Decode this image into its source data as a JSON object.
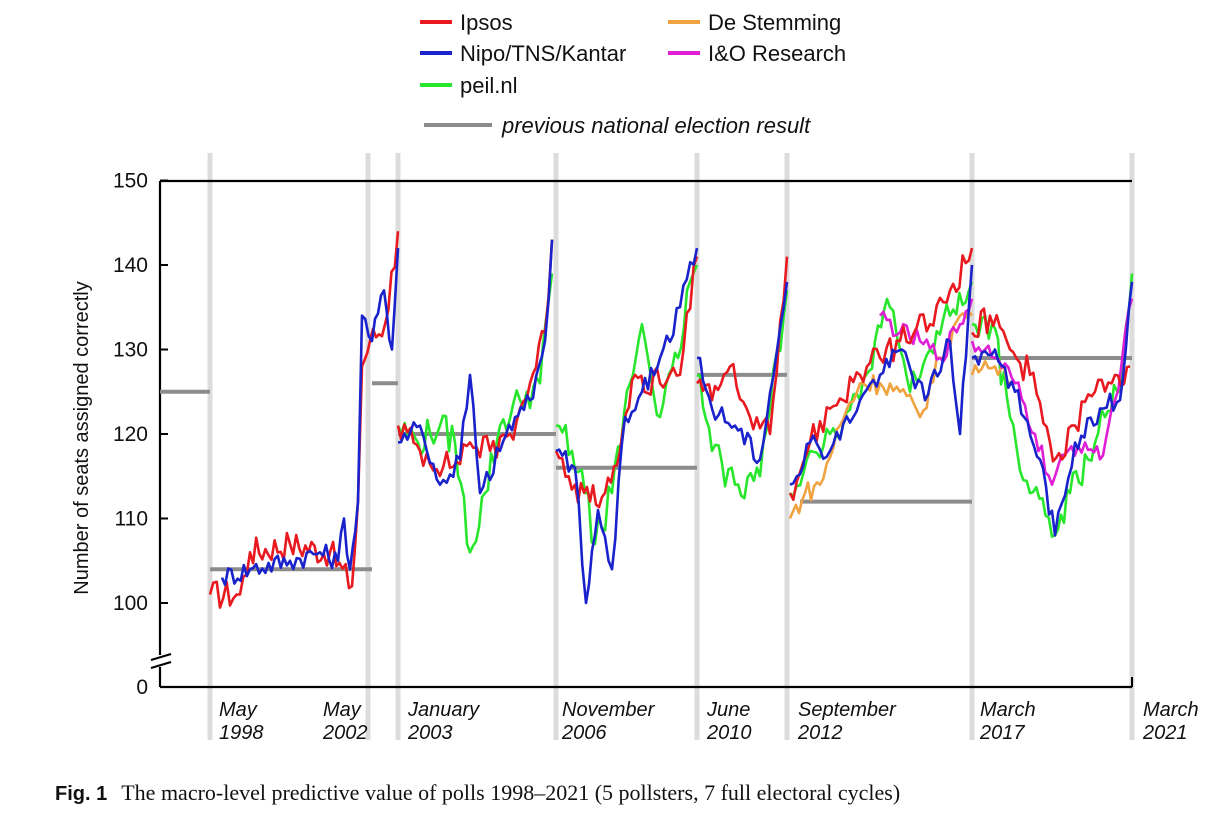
{
  "chart_data": {
    "type": "line",
    "ylabel": "Number of seats assigned correctly",
    "ylim": [
      95,
      150
    ],
    "y_axis_break": true,
    "y_ticks": [
      150,
      140,
      130,
      120,
      110,
      100,
      0
    ],
    "grid": false,
    "legend_placement": "top",
    "election_labels": [
      "May\n1998",
      "May\n2002",
      "January\n2003",
      "November\n2006",
      "June\n2010",
      "September\n2012",
      "March\n2017",
      "March\n2021"
    ],
    "series": [
      {
        "name": "Ipsos",
        "color": "#e8191f"
      },
      {
        "name": "Nipo/TNS/Kantar",
        "color": "#1a22cc"
      },
      {
        "name": "peil.nl",
        "color": "#27e62c"
      },
      {
        "name": "De Stemming",
        "color": "#f0a340"
      },
      {
        "name": "I&O Research",
        "color": "#e01ed6"
      }
    ],
    "reference": {
      "name": "previous national election result",
      "color": "#8c8c8c",
      "segments": [
        {
          "cycle": "1994-1998",
          "value": 125
        },
        {
          "cycle": "1998-2002",
          "value": 104
        },
        {
          "cycle": "2002-2003",
          "value": 126
        },
        {
          "cycle": "2003-2006",
          "value": 120
        },
        {
          "cycle": "2006-2010",
          "value": 116
        },
        {
          "cycle": "2010-2012",
          "value": 127
        },
        {
          "cycle": "2012-2017",
          "value": 112
        },
        {
          "cycle": "2017-2021",
          "value": 129
        }
      ]
    }
  },
  "caption": {
    "fig": "Fig. 1",
    "text": "The macro-level predictive value of polls 1998–2021 (5 pollsters, 7 full electoral cycles)"
  }
}
